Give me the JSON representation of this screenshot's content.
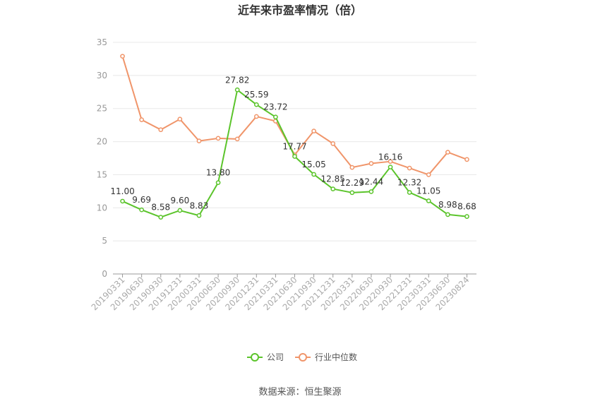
{
  "chart_data": {
    "type": "line",
    "title": "近年来市盈率情况（倍）",
    "source": "数据来源：恒生聚源",
    "categories": [
      "20190331",
      "20190630",
      "20190930",
      "20191231",
      "20200331",
      "20200630",
      "20200930",
      "20201231",
      "20210331",
      "20210630",
      "20210930",
      "20211231",
      "20220331",
      "20220630",
      "20220930",
      "20221231",
      "20230331",
      "20230630",
      "20230824"
    ],
    "ylim": [
      0,
      35
    ],
    "yticks": [
      0,
      5,
      10,
      15,
      20,
      25,
      30,
      35
    ],
    "grid": true,
    "legend_position": "bottom",
    "series": [
      {
        "name": "公司",
        "color": "#5bc42b",
        "show_labels": true,
        "values": [
          11.0,
          9.69,
          8.58,
          9.6,
          8.83,
          13.8,
          27.82,
          25.59,
          23.72,
          17.77,
          15.05,
          12.85,
          12.29,
          12.44,
          16.16,
          12.32,
          11.05,
          8.98,
          8.68
        ],
        "labels": [
          "11.00",
          "9.69",
          "8.58",
          "9.60",
          "8.83",
          "13.80",
          "27.82",
          "25.59",
          "23.72",
          "17.77",
          "15.05",
          "12.85",
          "12.29",
          "12.44",
          "16.16",
          "12.32",
          "11.05",
          "8.98",
          "8.68"
        ]
      },
      {
        "name": "行业中位数",
        "color": "#f0956a",
        "show_labels": false,
        "values": [
          32.9,
          23.3,
          21.8,
          23.4,
          20.1,
          20.5,
          20.4,
          23.8,
          23.1,
          18.0,
          21.6,
          19.7,
          16.1,
          16.7,
          17.0,
          16.0,
          15.0,
          18.4,
          17.3
        ]
      }
    ]
  }
}
